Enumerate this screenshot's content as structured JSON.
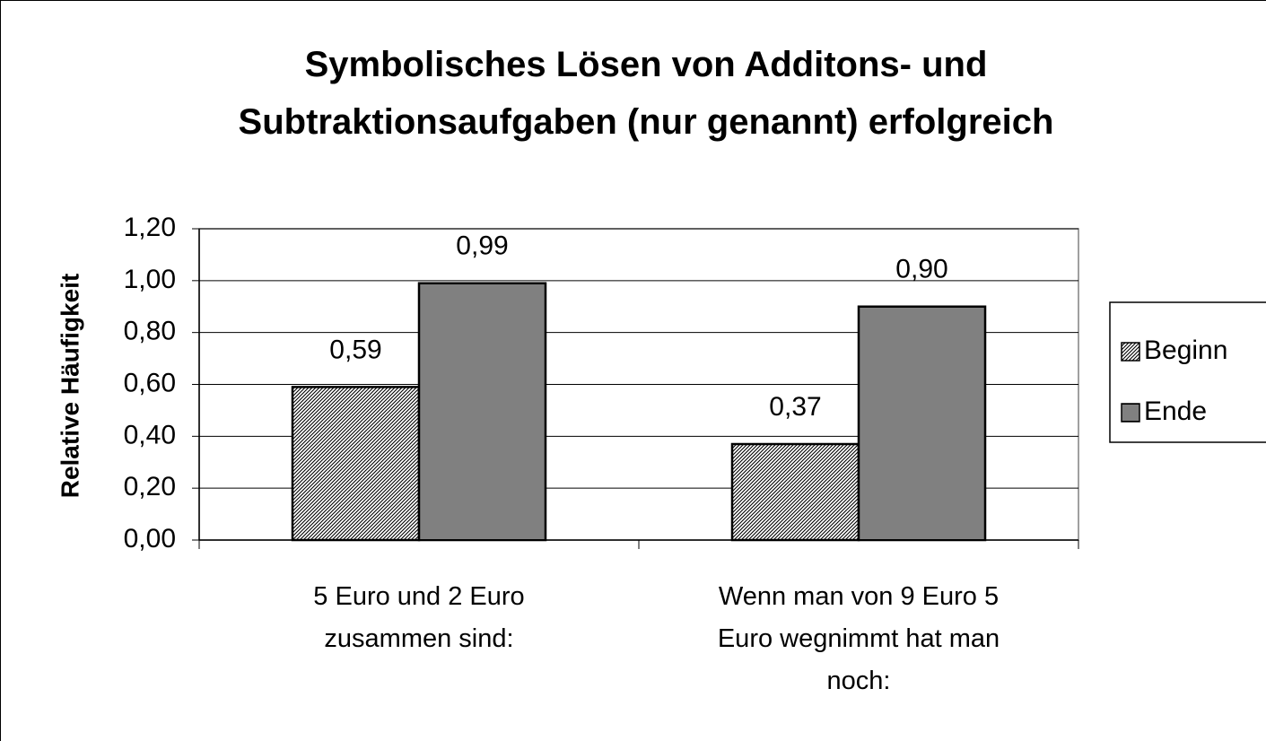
{
  "chart_data": {
    "type": "bar",
    "title": "Symbolisches Lösen von Additons- und Subtraktionsaufgaben (nur genannt) erfolgreich",
    "y_label": "Relative Häufigkeit",
    "categories": [
      "5 Euro und 2 Euro zusammen sind:",
      "Wenn man von 9 Euro 5 Euro wegnimmt hat man noch:"
    ],
    "series": [
      {
        "name": "Beginn",
        "color": "#000000",
        "pattern": "diagonal",
        "values": [
          0.59,
          0.37
        ],
        "value_labels": [
          "0,59",
          "0,37"
        ]
      },
      {
        "name": "Ende",
        "color": "#000000",
        "pattern": "horizontal",
        "values": [
          0.99,
          0.9
        ],
        "value_labels": [
          "0,99",
          "0,90"
        ]
      }
    ],
    "ylim": [
      0,
      1.2
    ],
    "yticks": [
      {
        "value": 0,
        "label": "0,00"
      },
      {
        "value": 0.2,
        "label": "0,20"
      },
      {
        "value": 0.4,
        "label": "0,40"
      },
      {
        "value": 0.6,
        "label": "0,60"
      },
      {
        "value": 0.8,
        "label": "0,80"
      },
      {
        "value": 1.0,
        "label": "1,00"
      },
      {
        "value": 1.2,
        "label": "1,20"
      }
    ],
    "grid": true,
    "legend": "right"
  }
}
